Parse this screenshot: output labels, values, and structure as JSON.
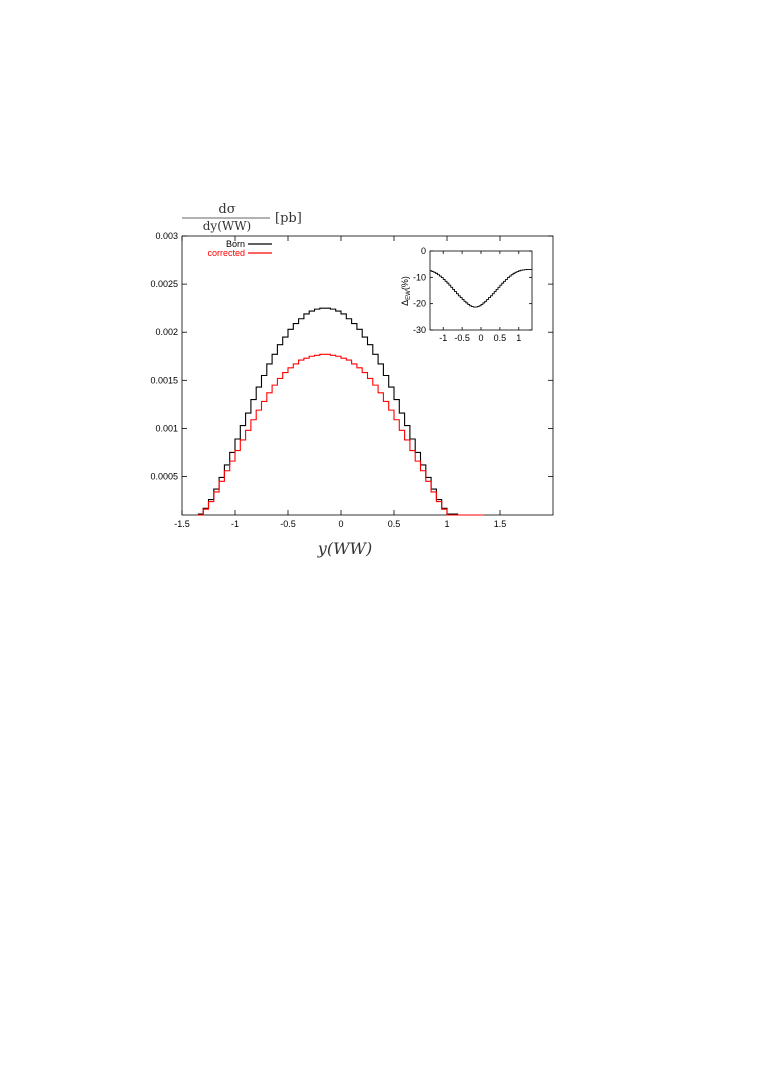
{
  "chart_data": [
    {
      "type": "line",
      "step": true,
      "ylabel_numerator": "dσ",
      "ylabel_denominator": "dy(WW)",
      "ylabel_unit": "[pb]",
      "xlabel": "y(WW)",
      "xlim": [
        -1.5,
        2.0
      ],
      "ylim": [
        0.0001,
        0.003
      ],
      "xticks": [
        -1.5,
        -1,
        -0.5,
        0,
        0.5,
        1,
        1.5
      ],
      "xtick_labels": [
        "-1.5",
        "-1",
        "-0.5",
        "0",
        "0.5",
        "1",
        "1.5"
      ],
      "yticks": [
        0.0005,
        0.001,
        0.0015,
        0.002,
        0.0025,
        0.003
      ],
      "ytick_labels": [
        "0.0005",
        "0.001",
        "0.0015",
        "0.002",
        "0.0025",
        "0.003"
      ],
      "legend_position": "top-left",
      "bin_width": 0.05,
      "bin_start": -1.35,
      "series": [
        {
          "name": "Born",
          "color": "#000000",
          "values": [
            0.00011,
            0.00017,
            0.00026,
            0.00037,
            0.00049,
            0.00062,
            0.00075,
            0.00089,
            0.00103,
            0.00116,
            0.0013,
            0.00143,
            0.00155,
            0.00167,
            0.00177,
            0.00187,
            0.00195,
            0.00203,
            0.00209,
            0.00214,
            0.00219,
            0.00222,
            0.00224,
            0.00225,
            0.00225,
            0.00224,
            0.00222,
            0.00219,
            0.00214,
            0.00209,
            0.00203,
            0.00195,
            0.00187,
            0.00177,
            0.00167,
            0.00155,
            0.00143,
            0.0013,
            0.00116,
            0.00103,
            0.00089,
            0.00075,
            0.00062,
            0.00049,
            0.00037,
            0.00026,
            0.00017,
            0.00011,
            0.00011,
            0.0001,
            0.0001,
            0.0001,
            0.0001,
            0.0001
          ]
        },
        {
          "name": "corrected",
          "color": "#ff0000",
          "values": [
            0.0001,
            0.00016,
            0.00024,
            0.00034,
            0.00045,
            0.00056,
            0.00066,
            0.00077,
            0.00088,
            0.00098,
            0.00109,
            0.00119,
            0.00128,
            0.00137,
            0.00145,
            0.00152,
            0.00158,
            0.00163,
            0.00167,
            0.00171,
            0.00173,
            0.00175,
            0.00176,
            0.00177,
            0.00177,
            0.00176,
            0.00175,
            0.00173,
            0.00171,
            0.00167,
            0.00163,
            0.00158,
            0.00152,
            0.00145,
            0.00137,
            0.00128,
            0.00119,
            0.00109,
            0.00098,
            0.00088,
            0.00077,
            0.00066,
            0.00056,
            0.00045,
            0.00034,
            0.00024,
            0.00016,
            0.0001,
            0.0001,
            0.0001,
            0.0001,
            0.0001,
            0.0001,
            0.0001
          ]
        }
      ]
    },
    {
      "type": "line",
      "step": true,
      "ylabel": "ΔEW(%)",
      "ylabel_main": "Δ",
      "ylabel_sub": "EW",
      "ylabel_suffix": "(%)",
      "xlim": [
        -1.35,
        1.35
      ],
      "ylim": [
        -30,
        0
      ],
      "xticks": [
        -1,
        -0.5,
        0,
        0.5,
        1
      ],
      "xtick_labels": [
        "-1",
        "-0.5",
        "0",
        "0.5",
        "1"
      ],
      "yticks": [
        0,
        -10,
        -20,
        -30
      ],
      "ytick_labels": [
        "0",
        "-10",
        "-20",
        "-30"
      ],
      "bin_width": 0.05,
      "bin_start": -1.35,
      "series": [
        {
          "color": "#000000",
          "values": [
            -7.5,
            -7.8,
            -8.1,
            -8.5,
            -9.0,
            -9.5,
            -10.1,
            -10.8,
            -11.5,
            -12.2,
            -13.0,
            -13.8,
            -14.6,
            -15.4,
            -16.2,
            -17.0,
            -17.7,
            -18.4,
            -19.1,
            -19.7,
            -20.3,
            -20.8,
            -21.1,
            -21.3,
            -21.3,
            -21.1,
            -20.8,
            -20.3,
            -19.7,
            -19.1,
            -18.4,
            -17.7,
            -17.0,
            -16.2,
            -15.4,
            -14.6,
            -13.8,
            -13.0,
            -12.2,
            -11.5,
            -10.8,
            -10.1,
            -9.5,
            -9.0,
            -8.5,
            -8.1,
            -7.8,
            -7.5,
            -7.3,
            -7.2,
            -7.1,
            -7.0,
            -7.0,
            -7.0
          ]
        }
      ]
    }
  ]
}
